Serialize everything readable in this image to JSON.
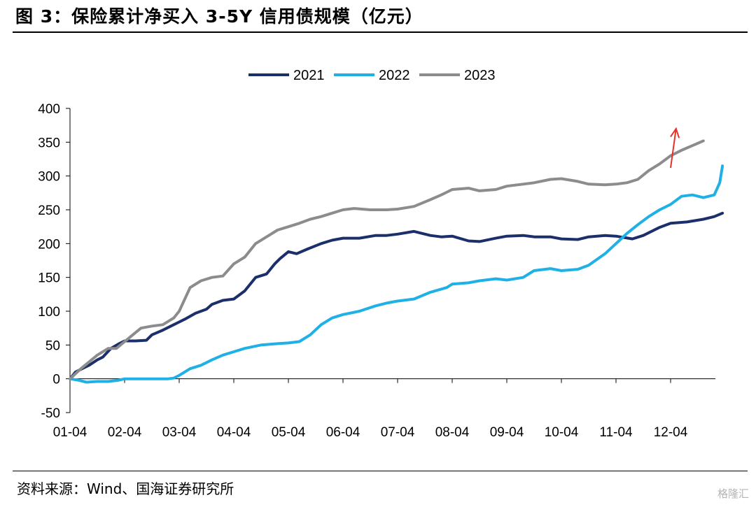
{
  "header": {
    "title": "图 3：保险累计净买入 3-5Y 信用债规模（亿元）"
  },
  "footer": {
    "source": "资料来源：Wind、国海证券研究所",
    "watermark": "格隆汇"
  },
  "chart_data": {
    "type": "line",
    "title": "",
    "xlabel": "",
    "ylabel": "",
    "ylim": [
      -50,
      400
    ],
    "yticks": [
      -50,
      0,
      50,
      100,
      150,
      200,
      250,
      300,
      350,
      400
    ],
    "xlim": [
      1,
      13
    ],
    "xticks": [
      1,
      2,
      3,
      4,
      5,
      6,
      7,
      8,
      9,
      10,
      11,
      12
    ],
    "xtick_labels": [
      "01-04",
      "02-04",
      "03-04",
      "04-04",
      "05-04",
      "06-04",
      "07-04",
      "08-04",
      "09-04",
      "10-04",
      "11-04",
      "12-04"
    ],
    "x_unit": "month index (1 = 01-04)",
    "grid": false,
    "legend_position": "top-center",
    "series": [
      {
        "name": "2021",
        "color": "#1b2f6b",
        "x": [
          1.0,
          1.1,
          1.2,
          1.35,
          1.5,
          1.6,
          1.75,
          1.9,
          2.0,
          2.2,
          2.4,
          2.5,
          2.7,
          2.9,
          3.1,
          3.3,
          3.5,
          3.6,
          3.8,
          4.0,
          4.2,
          4.4,
          4.6,
          4.75,
          4.85,
          5.0,
          5.15,
          5.35,
          5.6,
          5.8,
          6.0,
          6.3,
          6.6,
          6.8,
          7.0,
          7.3,
          7.6,
          7.8,
          8.0,
          8.3,
          8.5,
          8.8,
          9.0,
          9.3,
          9.5,
          9.8,
          10.0,
          10.3,
          10.5,
          10.8,
          11.0,
          11.3,
          11.5,
          11.8,
          12.0,
          12.3,
          12.6,
          12.8,
          12.95
        ],
        "y": [
          0,
          10,
          14,
          20,
          28,
          32,
          45,
          52,
          56,
          56,
          57,
          65,
          72,
          80,
          88,
          97,
          103,
          110,
          116,
          118,
          130,
          150,
          155,
          170,
          178,
          188,
          185,
          192,
          200,
          205,
          208,
          208,
          212,
          212,
          214,
          218,
          212,
          210,
          211,
          204,
          203,
          208,
          211,
          212,
          210,
          210,
          207,
          206,
          210,
          212,
          211,
          207,
          212,
          224,
          230,
          232,
          236,
          240,
          245
        ]
      },
      {
        "name": "2022",
        "color": "#1fb1e6",
        "x": [
          1.0,
          1.15,
          1.3,
          1.5,
          1.7,
          1.9,
          2.0,
          2.2,
          2.4,
          2.6,
          2.8,
          2.9,
          3.0,
          3.2,
          3.4,
          3.6,
          3.8,
          4.0,
          4.2,
          4.5,
          4.8,
          5.0,
          5.2,
          5.4,
          5.6,
          5.8,
          6.0,
          6.3,
          6.6,
          6.8,
          7.0,
          7.3,
          7.6,
          7.9,
          8.0,
          8.3,
          8.5,
          8.8,
          9.0,
          9.3,
          9.5,
          9.8,
          10.0,
          10.3,
          10.5,
          10.8,
          11.0,
          11.2,
          11.4,
          11.6,
          11.8,
          12.0,
          12.2,
          12.4,
          12.6,
          12.8,
          12.9,
          12.95
        ],
        "y": [
          0,
          -2,
          -5,
          -4,
          -4,
          -2,
          0,
          0,
          0,
          0,
          0,
          1,
          5,
          15,
          20,
          28,
          35,
          40,
          45,
          50,
          52,
          53,
          55,
          65,
          80,
          90,
          95,
          100,
          108,
          112,
          115,
          118,
          128,
          135,
          140,
          142,
          145,
          148,
          146,
          150,
          160,
          163,
          160,
          162,
          168,
          185,
          200,
          215,
          228,
          240,
          250,
          258,
          270,
          272,
          268,
          272,
          290,
          315
        ]
      },
      {
        "name": "2023",
        "color": "#8c8c8c",
        "x": [
          1.0,
          1.2,
          1.35,
          1.5,
          1.7,
          1.85,
          2.0,
          2.15,
          2.3,
          2.5,
          2.7,
          2.9,
          3.0,
          3.2,
          3.4,
          3.6,
          3.8,
          4.0,
          4.2,
          4.4,
          4.6,
          4.8,
          5.0,
          5.2,
          5.4,
          5.6,
          5.8,
          6.0,
          6.2,
          6.5,
          6.8,
          7.0,
          7.3,
          7.6,
          7.8,
          8.0,
          8.3,
          8.5,
          8.8,
          9.0,
          9.3,
          9.5,
          9.8,
          10.0,
          10.3,
          10.5,
          10.8,
          11.0,
          11.2,
          11.4,
          11.6,
          11.8,
          12.0,
          12.2,
          12.4,
          12.6
        ],
        "y": [
          0,
          15,
          25,
          35,
          45,
          45,
          55,
          65,
          75,
          78,
          80,
          90,
          100,
          135,
          145,
          150,
          152,
          170,
          180,
          200,
          210,
          220,
          225,
          230,
          236,
          240,
          245,
          250,
          252,
          250,
          250,
          251,
          255,
          265,
          272,
          280,
          282,
          278,
          280,
          285,
          288,
          290,
          295,
          296,
          292,
          288,
          287,
          288,
          290,
          295,
          308,
          318,
          330,
          338,
          345,
          352
        ]
      }
    ],
    "annotation": {
      "type": "arrow",
      "color": "#e8312a",
      "from": [
        12.0,
        312
      ],
      "to": [
        12.1,
        370
      ]
    }
  }
}
